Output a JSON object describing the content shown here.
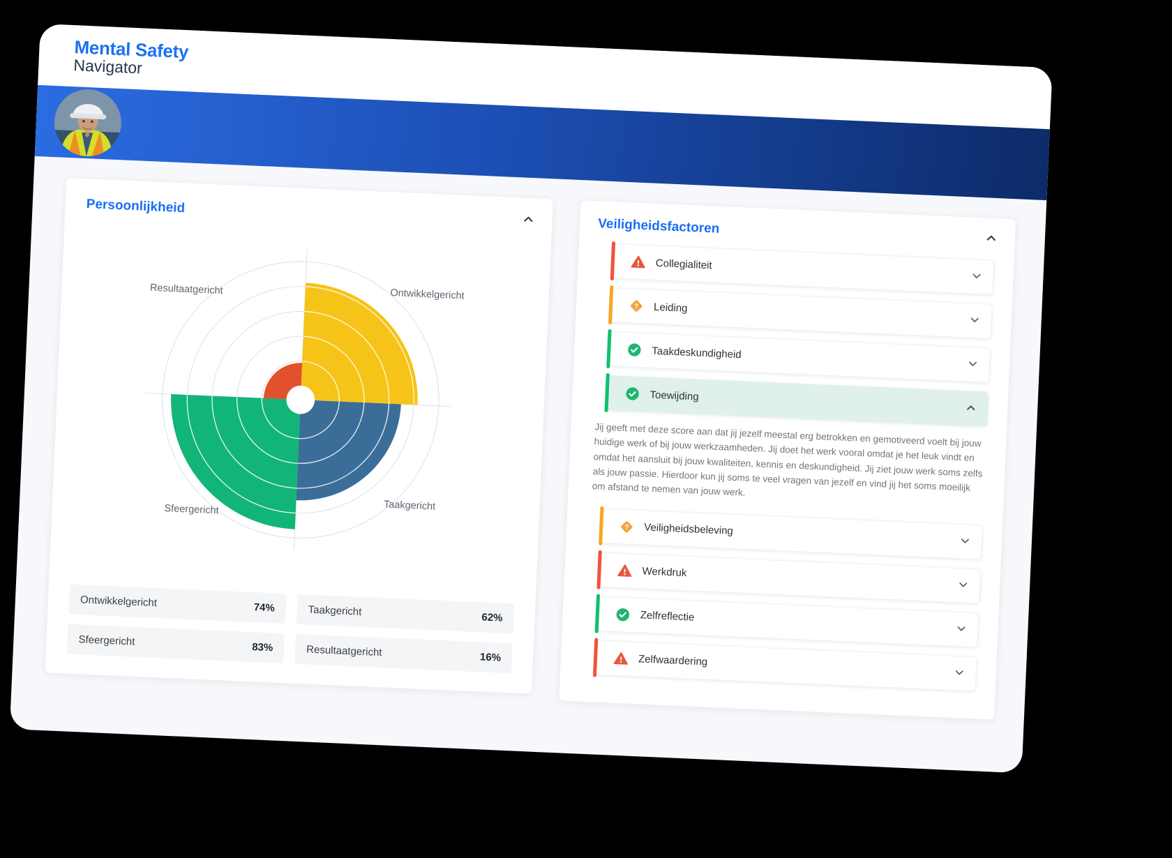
{
  "brand": {
    "line1": "Mental Safety",
    "line2": "Navigator"
  },
  "personality": {
    "title": "Persoonlijkheid",
    "collapse_icon": "chevron-up",
    "chart_data": {
      "type": "polar-quadrant",
      "categories": [
        "Ontwikkelgericht",
        "Taakgericht",
        "Sfeergericht",
        "Resultaatgericht"
      ],
      "values": [
        74,
        62,
        83,
        16
      ],
      "unit": "%",
      "range": [
        0,
        100
      ],
      "grid_rings": 5,
      "colors": [
        "#f6c418",
        "#3a6e98",
        "#12b578",
        "#e2512e"
      ],
      "quadrant_positions": [
        "top-right",
        "bottom-right",
        "bottom-left",
        "top-left"
      ]
    },
    "scores": [
      {
        "label": "Ontwikkelgericht",
        "value": "74%"
      },
      {
        "label": "Taakgericht",
        "value": "62%"
      },
      {
        "label": "Sfeergericht",
        "value": "83%"
      },
      {
        "label": "Resultaatgericht",
        "value": "16%"
      }
    ]
  },
  "factors": {
    "title": "Veiligheidsfactoren",
    "collapse_icon": "chevron-up",
    "items": [
      {
        "label": "Collegialiteit",
        "status": "alert",
        "expanded": false
      },
      {
        "label": "Leiding",
        "status": "question",
        "expanded": false
      },
      {
        "label": "Taakdeskundigheid",
        "status": "ok",
        "expanded": false
      },
      {
        "label": "Toewijding",
        "status": "ok",
        "expanded": true,
        "description": "Jij geeft met deze score aan dat jij jezelf meestal erg betrokken en gemotiveerd voelt bij jouw huidige werk of bij jouw werkzaamheden. Jij doet het werk vooral omdat je het leuk vindt en omdat het aansluit bij jouw kwaliteiten, kennis en deskundigheid. Jij ziet jouw werk soms zelfs als jouw passie. Hierdoor kun jij soms te veel vragen van jezelf en vind jij het soms moeilijk om afstand te nemen van jouw werk."
      },
      {
        "label": "Veiligheidsbeleving",
        "status": "question",
        "expanded": false
      },
      {
        "label": "Werkdruk",
        "status": "alert",
        "expanded": false
      },
      {
        "label": "Zelfreflectie",
        "status": "ok",
        "expanded": false
      },
      {
        "label": "Zelfwaardering",
        "status": "alert",
        "expanded": false
      }
    ]
  },
  "colors": {
    "title_blue": "#1a6ef5",
    "brand_blue": "#1b72f2",
    "brand_dark": "#2a3550",
    "header_gradient_start": "#2b6ce2",
    "header_gradient_end": "#0d2b69",
    "accent_red": "#f4503b",
    "accent_orange": "#f8a61b",
    "accent_green": "#0fc06e",
    "icon_red": "#e8563f",
    "icon_orange": "#f2a33c",
    "icon_green": "#1fb573",
    "expanded_row_bg": "#dff1ea",
    "page_bg": "#f7f8fb"
  }
}
